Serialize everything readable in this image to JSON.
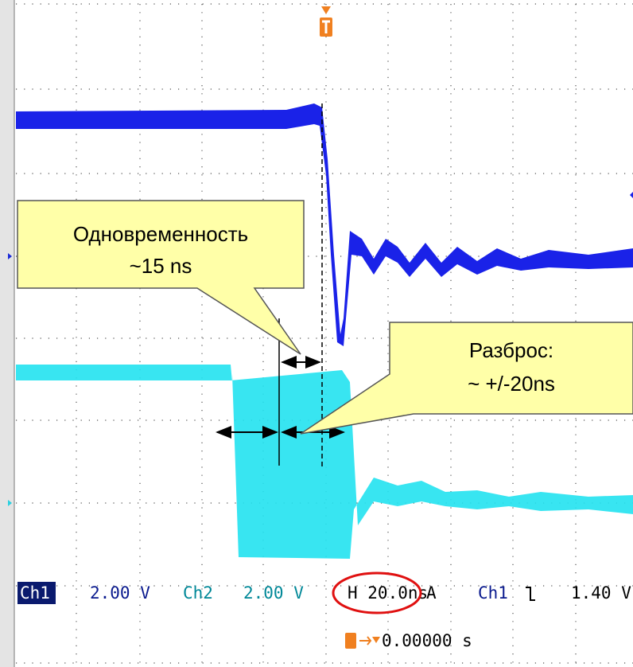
{
  "callouts": [
    {
      "lines": [
        "Одновременность",
        "~15 ns"
      ]
    },
    {
      "lines": [
        "Разброс:",
        "~ +/-20ns"
      ]
    }
  ],
  "status": {
    "ch1_label": "Ch1",
    "ch1_scale": "2.00 V",
    "ch2_label": "Ch2",
    "ch2_scale": "2.00 V",
    "timebase": "H 20.0ns",
    "trigger_mode": "A",
    "trigger_source": "Ch1",
    "trigger_level": "1.40 V",
    "trigger_position": "0.00000 s"
  }
}
